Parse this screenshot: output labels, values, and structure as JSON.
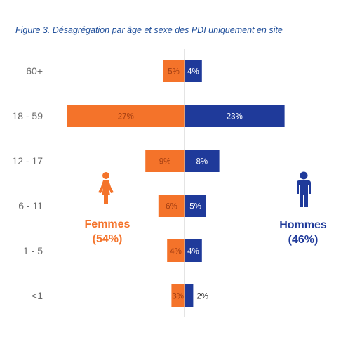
{
  "title": {
    "prefix": "Figure 3. Désagrégation par âge et sexe des PDI ",
    "underlined": "uniquement en site"
  },
  "colors": {
    "femmes": "#f4732a",
    "hommes": "#1f3a9a",
    "axis": "#c8c8c8",
    "category_text": "#6b6b6b",
    "title": "#1f4e9a"
  },
  "legend": {
    "femmes": {
      "label": "Femmes",
      "share": "(54%)",
      "icon": "female-person-icon"
    },
    "hommes": {
      "label": "Hommes",
      "share": "(46%)",
      "icon": "male-person-icon"
    }
  },
  "chart_data": {
    "type": "bar",
    "orientation": "horizontal-diverging",
    "categories": [
      "60+",
      "18 - 59",
      "12 - 17",
      "6 - 11",
      "1 - 5",
      "<1"
    ],
    "series": [
      {
        "name": "Femmes",
        "values": [
          5,
          27,
          9,
          6,
          4,
          3
        ],
        "labels": [
          "5%",
          "27%",
          "9%",
          "6%",
          "4%",
          "3%"
        ]
      },
      {
        "name": "Hommes",
        "values": [
          4,
          23,
          8,
          5,
          4,
          2
        ],
        "labels": [
          "4%",
          "23%",
          "8%",
          "5%",
          "4%",
          "2%"
        ]
      }
    ],
    "unit": "%",
    "grid": false
  }
}
